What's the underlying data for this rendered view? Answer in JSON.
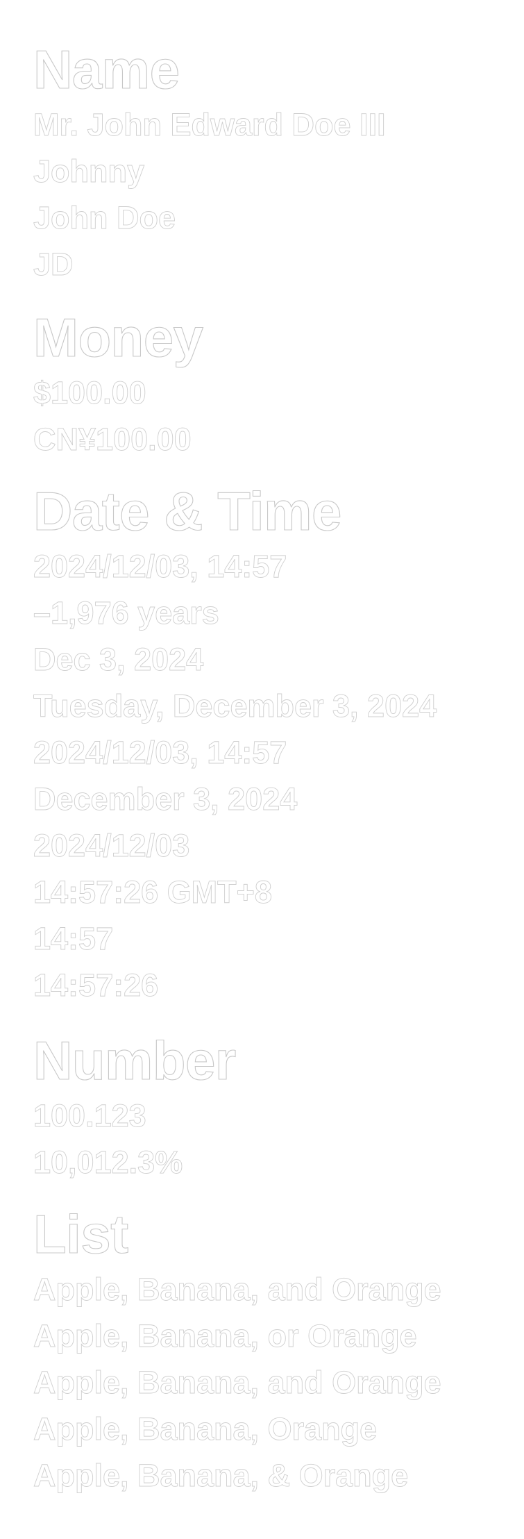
{
  "name": {
    "title": "Name",
    "items": [
      "Mr. John Edward Doe III",
      "Johnny",
      "John Doe",
      "JD"
    ]
  },
  "money": {
    "title": "Money",
    "items": [
      "$100.00",
      "CN¥100.00"
    ]
  },
  "datetime": {
    "title": "Date & Time",
    "items": [
      "2024/12/03, 14:57",
      "–1,976 years",
      "Dec 3, 2024",
      "Tuesday, December 3, 2024",
      "2024/12/03, 14:57",
      "December 3, 2024",
      "2024/12/03",
      "14:57:26 GMT+8",
      "14:57",
      "14:57:26"
    ]
  },
  "number": {
    "title": "Number",
    "items": [
      "100.123",
      "10,012.3%"
    ]
  },
  "list": {
    "title": "List",
    "items": [
      "Apple, Banana, and Orange",
      "Apple, Banana, or Orange",
      "Apple, Banana, and Orange",
      "Apple, Banana, Orange",
      "Apple, Banana, & Orange"
    ]
  }
}
